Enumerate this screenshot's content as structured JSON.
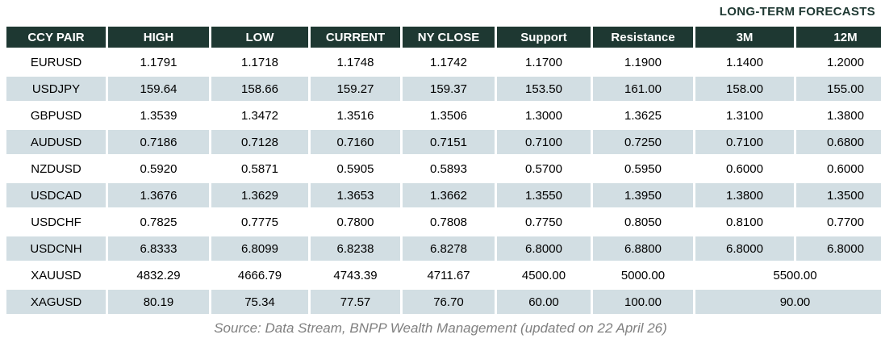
{
  "title": "LONG-TERM FORECASTS",
  "source": "Source: Data Stream, BNPP Wealth Management (updated on 22 April 26)",
  "colors": {
    "header_bg": "#1e3832",
    "header_text": "#ffffff",
    "row_shaded_bg": "#d2dee3",
    "row_plain_bg": "#ffffff",
    "title_text": "#1e3832",
    "source_text": "#808080"
  },
  "chart_data": {
    "type": "table",
    "title": "LONG-TERM FORECASTS",
    "columns": [
      "CCY PAIR",
      "HIGH",
      "LOW",
      "CURRENT",
      "NY CLOSE",
      "Support",
      "Resistance",
      "3M",
      "12M"
    ],
    "rows": [
      {
        "pair": "EURUSD",
        "values": [
          "1.1791",
          "1.1718",
          "1.1748",
          "1.1742",
          "1.1700",
          "1.1900",
          "1.1400",
          "1.2000"
        ]
      },
      {
        "pair": "USDJPY",
        "values": [
          "159.64",
          "158.66",
          "159.27",
          "159.37",
          "153.50",
          "161.00",
          "158.00",
          "155.00"
        ]
      },
      {
        "pair": "GBPUSD",
        "values": [
          "1.3539",
          "1.3472",
          "1.3516",
          "1.3506",
          "1.3000",
          "1.3625",
          "1.3100",
          "1.3800"
        ]
      },
      {
        "pair": "AUDUSD",
        "values": [
          "0.7186",
          "0.7128",
          "0.7160",
          "0.7151",
          "0.7100",
          "0.7250",
          "0.7100",
          "0.6800"
        ]
      },
      {
        "pair": "NZDUSD",
        "values": [
          "0.5920",
          "0.5871",
          "0.5905",
          "0.5893",
          "0.5700",
          "0.5950",
          "0.6000",
          "0.6000"
        ]
      },
      {
        "pair": "USDCAD",
        "values": [
          "1.3676",
          "1.3629",
          "1.3653",
          "1.3662",
          "1.3550",
          "1.3950",
          "1.3800",
          "1.3500"
        ]
      },
      {
        "pair": "USDCHF",
        "values": [
          "0.7825",
          "0.7775",
          "0.7800",
          "0.7808",
          "0.7750",
          "0.8050",
          "0.8100",
          "0.7700"
        ]
      },
      {
        "pair": "USDCNH",
        "values": [
          "6.8333",
          "6.8099",
          "6.8238",
          "6.8278",
          "6.8000",
          "6.8800",
          "6.8000",
          "6.8000"
        ]
      },
      {
        "pair": "XAUUSD",
        "values": [
          "4832.29",
          "4666.79",
          "4743.39",
          "4711.67",
          "4500.00",
          "5000.00"
        ],
        "forecast_merged": "5500.00"
      },
      {
        "pair": "XAGUSD",
        "values": [
          "80.19",
          "75.34",
          "77.57",
          "76.70",
          "60.00",
          "100.00"
        ],
        "forecast_merged": "90.00"
      }
    ],
    "layout": {
      "shaded_row_indices": [
        1,
        3,
        5,
        7,
        9
      ],
      "merged_3m_12m_rows": [
        "XAUUSD",
        "XAGUSD"
      ],
      "title_position": "top-right",
      "source_position": "bottom-center"
    }
  }
}
